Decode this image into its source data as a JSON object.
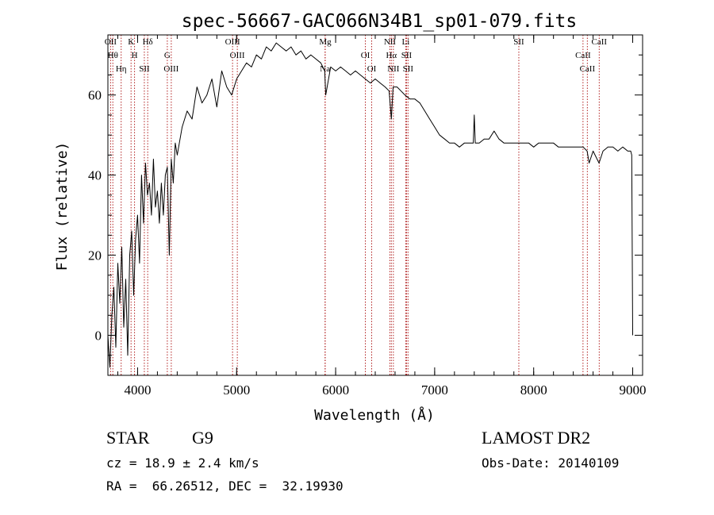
{
  "chart_data": {
    "type": "line",
    "title": "spec-56667-GAC066N34B1_sp01-079.fits",
    "xlabel": "Wavelength (Å)",
    "ylabel": "Flux (relative)",
    "xlim": [
      3700,
      9100
    ],
    "ylim": [
      -10,
      75
    ],
    "xticks": [
      4000,
      5000,
      6000,
      7000,
      8000,
      9000
    ],
    "yticks": [
      0,
      20,
      40,
      60
    ],
    "x_tick_labels": [
      "4000",
      "5000",
      "6000",
      "7000",
      "8000",
      "9000"
    ],
    "y_tick_labels": [
      "0",
      "20",
      "40",
      "60"
    ],
    "spectrum": {
      "x": [
        3700,
        3720,
        3740,
        3760,
        3780,
        3800,
        3820,
        3840,
        3860,
        3880,
        3900,
        3920,
        3940,
        3960,
        3980,
        4000,
        4020,
        4040,
        4060,
        4080,
        4100,
        4120,
        4140,
        4160,
        4180,
        4200,
        4220,
        4240,
        4260,
        4280,
        4300,
        4320,
        4340,
        4360,
        4380,
        4400,
        4450,
        4500,
        4550,
        4600,
        4650,
        4700,
        4750,
        4800,
        4850,
        4900,
        4950,
        5000,
        5050,
        5100,
        5150,
        5200,
        5250,
        5300,
        5350,
        5400,
        5450,
        5500,
        5550,
        5600,
        5650,
        5700,
        5750,
        5800,
        5850,
        5890,
        5900,
        5950,
        6000,
        6050,
        6100,
        6150,
        6200,
        6250,
        6300,
        6350,
        6400,
        6450,
        6500,
        6540,
        6563,
        6580,
        6620,
        6660,
        6700,
        6750,
        6800,
        6850,
        6900,
        6950,
        7000,
        7050,
        7100,
        7150,
        7200,
        7250,
        7300,
        7350,
        7390,
        7400,
        7410,
        7450,
        7500,
        7550,
        7600,
        7650,
        7700,
        7750,
        7800,
        7850,
        7900,
        7950,
        8000,
        8050,
        8100,
        8150,
        8200,
        8250,
        8300,
        8350,
        8400,
        8450,
        8500,
        8540,
        8560,
        8600,
        8640,
        8660,
        8700,
        8750,
        8800,
        8850,
        8900,
        8950,
        8980,
        8990,
        9000
      ],
      "y": [
        0,
        -8,
        5,
        12,
        -3,
        18,
        8,
        22,
        2,
        14,
        -5,
        20,
        26,
        10,
        24,
        30,
        18,
        40,
        28,
        43,
        35,
        38,
        30,
        44,
        32,
        36,
        28,
        38,
        30,
        40,
        42,
        20,
        44,
        38,
        48,
        45,
        52,
        56,
        54,
        62,
        58,
        60,
        64,
        57,
        66,
        62,
        60,
        64,
        66,
        68,
        67,
        70,
        69,
        72,
        71,
        73,
        72,
        71,
        72,
        70,
        71,
        69,
        70,
        69,
        68,
        66,
        60,
        67,
        66,
        67,
        66,
        65,
        66,
        65,
        64,
        63,
        64,
        63,
        62,
        61,
        54,
        62,
        62,
        61,
        60,
        59,
        59,
        58,
        56,
        54,
        52,
        50,
        49,
        48,
        48,
        47,
        48,
        48,
        48,
        55,
        48,
        48,
        49,
        49,
        51,
        49,
        48,
        48,
        48,
        48,
        48,
        48,
        47,
        48,
        48,
        48,
        48,
        47,
        47,
        47,
        47,
        47,
        47,
        46,
        43,
        46,
        44,
        43,
        46,
        47,
        47,
        46,
        47,
        46,
        46,
        45,
        0
      ]
    },
    "lines": [
      {
        "x": 3727,
        "label": "OII"
      },
      {
        "x": 3750,
        "label": "Hθ"
      },
      {
        "x": 3834,
        "label": "Hη"
      },
      {
        "x": 3934,
        "label": "K"
      },
      {
        "x": 3969,
        "label": "H"
      },
      {
        "x": 4068,
        "label": "SII"
      },
      {
        "x": 4102,
        "label": "Hδ"
      },
      {
        "x": 4300,
        "label": "G"
      },
      {
        "x": 4340,
        "label": "OIII"
      },
      {
        "x": 4959,
        "label": "OIII"
      },
      {
        "x": 5007,
        "label": "OIII"
      },
      {
        "x": 5893,
        "label": "Na"
      },
      {
        "x": 5895,
        "label": "Mg"
      },
      {
        "x": 6300,
        "label": "OI"
      },
      {
        "x": 6364,
        "label": "OI"
      },
      {
        "x": 6548,
        "label": "NII"
      },
      {
        "x": 6563,
        "label": "Hα"
      },
      {
        "x": 6583,
        "label": "NII"
      },
      {
        "x": 6708,
        "label": "Li"
      },
      {
        "x": 6716,
        "label": "SII"
      },
      {
        "x": 6731,
        "label": "SII"
      },
      {
        "x": 7850,
        "label": "SII"
      },
      {
        "x": 8498,
        "label": "CaII"
      },
      {
        "x": 8542,
        "label": "CaII"
      },
      {
        "x": 8662,
        "label": "CaII"
      }
    ]
  },
  "info": {
    "class": "STAR",
    "subclass": "G9",
    "survey": "LAMOST DR2",
    "redshift": "cz = 18.9 ± 2.4 km/s",
    "obs_date": "Obs-Date: 20140109",
    "coords": "RA =  66.26512, DEC =  32.19930"
  },
  "colors": {
    "line_marker": "#b22222",
    "spectrum": "#000000",
    "axis": "#000000"
  }
}
